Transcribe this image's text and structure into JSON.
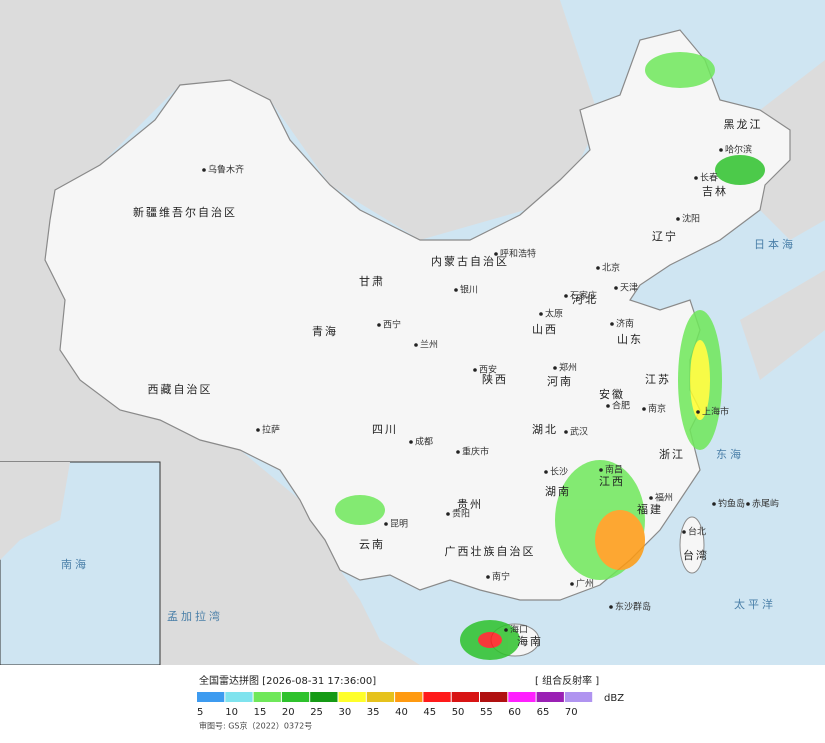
{
  "map": {
    "labels": [
      "新疆维吾尔自治区",
      "乌鲁木齐",
      "西藏自治区",
      "拉萨",
      "青海",
      "西宁",
      "甘肃",
      "兰州",
      "内蒙古自治区",
      "呼和浩特",
      "银川",
      "黑龙江",
      "哈尔滨",
      "吉林",
      "长春",
      "辽宁",
      "沈阳",
      "北京",
      "天津",
      "河北",
      "石家庄",
      "山西",
      "太原",
      "山东",
      "济南",
      "河南",
      "郑州",
      "陕西",
      "西安",
      "四川",
      "成都",
      "重庆市",
      "贵州",
      "贵阳",
      "云南",
      "昆明",
      "广西壮族自治区",
      "南宁",
      "湖北",
      "武汉",
      "湖南",
      "长沙",
      "江西",
      "南昌",
      "安徽",
      "合肥",
      "江苏",
      "南京",
      "上海市",
      "浙江",
      "福建",
      "福州",
      "台北",
      "台湾",
      "广州",
      "海南",
      "海口",
      "东沙群岛",
      "钓鱼岛",
      "赤尾屿",
      "日本海",
      "东海",
      "太平洋",
      "孟加拉湾",
      "南海"
    ]
  },
  "footer": {
    "title": "全国雷达拼图 [2026-08-31 17:36:00]",
    "product": "[ 组合反射率 ]",
    "legend": {
      "unit": "dBZ",
      "values": [
        5,
        10,
        15,
        20,
        25,
        30,
        35,
        40,
        45,
        50,
        55,
        60,
        65,
        70
      ],
      "colors": [
        "#3d9bf0",
        "#7fe3ee",
        "#6fe85a",
        "#2ec22c",
        "#159a15",
        "#ffff2a",
        "#e6c21c",
        "#ff9a10",
        "#ff1a1a",
        "#d81414",
        "#b01010",
        "#ff20ff",
        "#9a20b4",
        "#b094f0"
      ]
    },
    "approval": "审图号: GS京（2022）0372号"
  }
}
